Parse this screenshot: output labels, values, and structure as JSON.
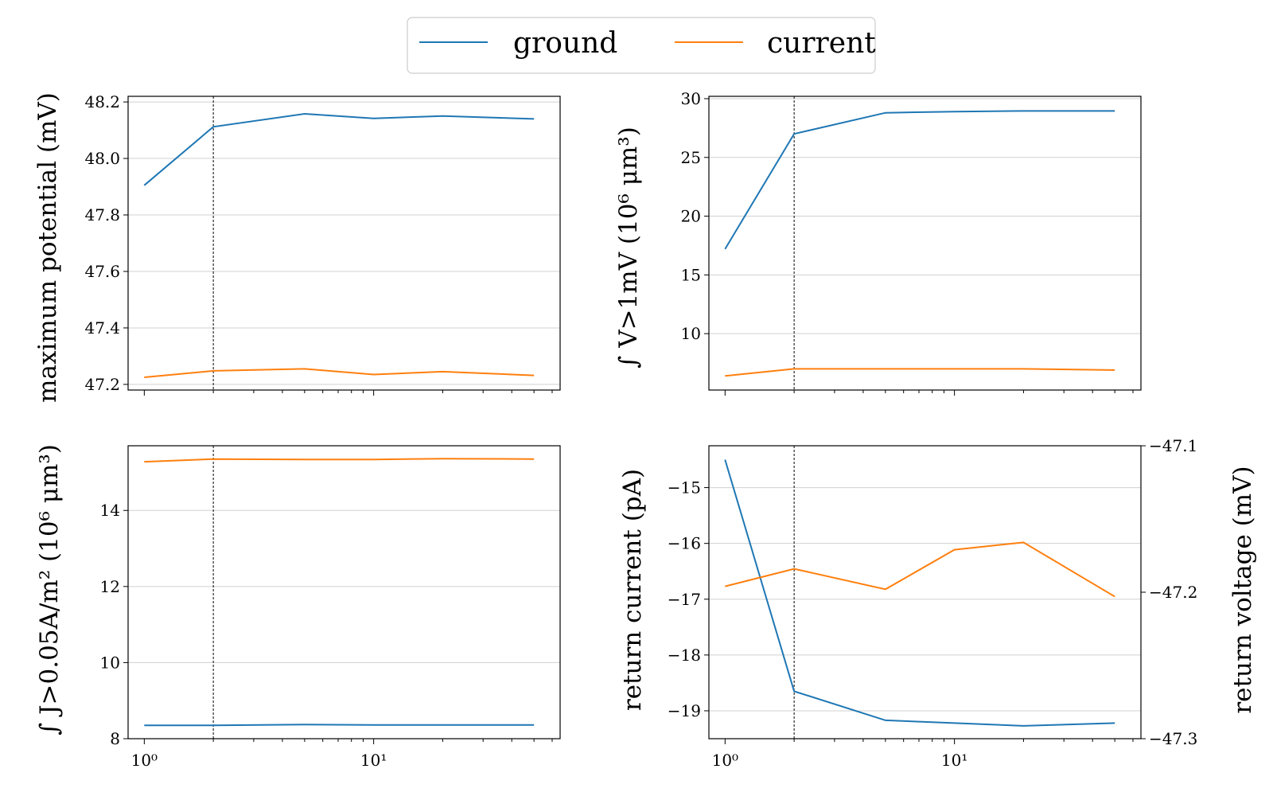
{
  "legend": {
    "placement": "top-center",
    "entries": [
      {
        "label": "ground",
        "color": "#1f77b4"
      },
      {
        "label": "current",
        "color": "#ff7f0e"
      }
    ]
  },
  "colors": {
    "ground": "#1f77b4",
    "current": "#ff7f0e"
  },
  "chart_data": [
    {
      "type": "line",
      "ylabel": "maximum potential (mV)",
      "xscale": "log",
      "xlim": [
        0.85,
        65
      ],
      "ylim": [
        47.18,
        48.22
      ],
      "yticks": [
        47.2,
        47.4,
        47.6,
        47.8,
        48.0,
        48.2
      ],
      "ytick_labels": [
        "47.2",
        "47.4",
        "47.6",
        "47.8",
        "48.0",
        "48.2"
      ],
      "xtick_labels": [],
      "grid": "y",
      "vline_x": 2,
      "x": [
        1,
        2,
        5,
        10,
        20,
        50
      ],
      "series": [
        {
          "name": "ground",
          "values": [
            47.905,
            48.112,
            48.158,
            48.142,
            48.15,
            48.14
          ]
        },
        {
          "name": "current",
          "values": [
            47.225,
            47.248,
            47.255,
            47.235,
            47.245,
            47.232
          ]
        }
      ]
    },
    {
      "type": "line",
      "ylabel": "∫ V>1mV (10⁶ μm³)",
      "xscale": "log",
      "xlim": [
        0.85,
        65
      ],
      "ylim": [
        5.2,
        30.2
      ],
      "yticks": [
        10,
        15,
        20,
        25,
        30
      ],
      "ytick_labels": [
        "10",
        "15",
        "20",
        "25",
        "30"
      ],
      "xtick_labels": [],
      "grid": "y",
      "vline_x": 2,
      "x": [
        1,
        2,
        5,
        10,
        20,
        50
      ],
      "series": [
        {
          "name": "ground",
          "values": [
            17.2,
            27.0,
            28.8,
            28.9,
            28.95,
            28.95
          ]
        },
        {
          "name": "current",
          "values": [
            6.4,
            7.0,
            7.0,
            7.0,
            7.0,
            6.9
          ]
        }
      ]
    },
    {
      "type": "line",
      "ylabel": "∫ J>0.05A/m² (10⁶ μm³)",
      "xscale": "log",
      "xlim": [
        0.85,
        65
      ],
      "ylim": [
        8.0,
        15.7
      ],
      "yticks": [
        8,
        10,
        12,
        14
      ],
      "ytick_labels": [
        "8",
        "10",
        "12",
        "14"
      ],
      "xtick_labels": [
        "10⁰",
        "10¹"
      ],
      "grid": "y",
      "vline_x": 2,
      "x": [
        1,
        2,
        5,
        10,
        20,
        50
      ],
      "series": [
        {
          "name": "ground",
          "values": [
            8.35,
            8.35,
            8.37,
            8.36,
            8.36,
            8.36
          ]
        },
        {
          "name": "current",
          "values": [
            15.28,
            15.35,
            15.34,
            15.34,
            15.36,
            15.35
          ]
        }
      ]
    },
    {
      "type": "line",
      "ylabel": "return current (pA)",
      "ylabel_right": "return voltage (mV)",
      "xscale": "log",
      "xlim": [
        0.85,
        65
      ],
      "ylim": [
        -19.5,
        -14.25
      ],
      "yticks": [
        -19,
        -18,
        -17,
        -16,
        -15
      ],
      "ytick_labels": [
        "−19",
        "−18",
        "−17",
        "−16",
        "−15"
      ],
      "ylim_right": [
        -47.3,
        -47.1
      ],
      "yticks_right": [
        -47.3,
        -47.2,
        -47.1
      ],
      "ytick_labels_right": [
        "−47.3",
        "−47.2",
        "−47.1"
      ],
      "xtick_labels": [
        "10⁰",
        "10¹"
      ],
      "grid": "y",
      "vline_x": 2,
      "x": [
        1,
        2,
        5,
        10,
        20,
        50
      ],
      "series": [
        {
          "name": "ground",
          "axis": "left",
          "values": [
            -14.5,
            -18.65,
            -19.17,
            -19.22,
            -19.27,
            -19.22
          ]
        },
        {
          "name": "current",
          "axis": "right",
          "values": [
            -47.196,
            -47.184,
            -47.198,
            -47.171,
            -47.166,
            -47.203
          ]
        }
      ]
    }
  ]
}
